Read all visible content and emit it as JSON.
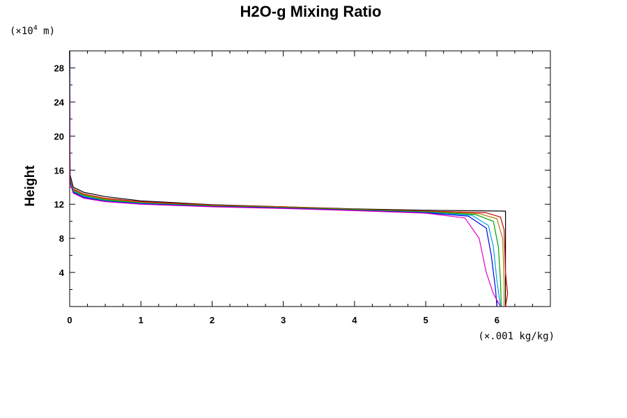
{
  "chart_data": {
    "type": "line",
    "title": "H2O-g Mixing Ratio",
    "xlabel": "",
    "ylabel": "Height",
    "x_unit": "(×.001 kg/kg)",
    "y_unit_prefix": "(×10",
    "y_unit_exp": "4",
    "y_unit_suffix": " m)",
    "xlim": [
      0,
      6.75
    ],
    "ylim": [
      0,
      30
    ],
    "x_ticks": [
      0,
      1,
      2,
      3,
      4,
      5,
      6
    ],
    "x_tick_labels": [
      "0",
      "1",
      "2",
      "3",
      "4",
      "5",
      "6"
    ],
    "y_ticks": [
      4,
      8,
      12,
      16,
      20,
      24,
      28
    ],
    "y_tick_labels": [
      "4",
      "8",
      "12",
      "16",
      "20",
      "24",
      "28"
    ],
    "grid": false,
    "series": [
      {
        "color": "#000000",
        "points": [
          [
            0,
            30
          ],
          [
            0.005,
            15.5
          ],
          [
            0.05,
            14
          ],
          [
            0.2,
            13.4
          ],
          [
            0.5,
            12.9
          ],
          [
            1,
            12.4
          ],
          [
            2,
            11.95
          ],
          [
            3,
            11.7
          ],
          [
            4,
            11.45
          ],
          [
            5,
            11.3
          ],
          [
            6.1,
            11.2
          ],
          [
            6.12,
            11.2
          ],
          [
            6.12,
            0
          ]
        ]
      },
      {
        "color": "#d00000",
        "points": [
          [
            0,
            30
          ],
          [
            0.005,
            15
          ],
          [
            0.05,
            13.8
          ],
          [
            0.2,
            13.2
          ],
          [
            0.5,
            12.7
          ],
          [
            1,
            12.3
          ],
          [
            2,
            11.9
          ],
          [
            3,
            11.7
          ],
          [
            4,
            11.4
          ],
          [
            5,
            11.2
          ],
          [
            5.85,
            11
          ],
          [
            6.05,
            10.5
          ],
          [
            6.1,
            9
          ],
          [
            6.12,
            4
          ],
          [
            6.15,
            1.5
          ],
          [
            6.12,
            0
          ]
        ]
      },
      {
        "color": "#a08000",
        "points": [
          [
            0,
            30
          ],
          [
            0.005,
            15
          ],
          [
            0.05,
            13.7
          ],
          [
            0.2,
            13.1
          ],
          [
            0.5,
            12.6
          ],
          [
            1,
            12.2
          ],
          [
            2,
            11.85
          ],
          [
            3,
            11.65
          ],
          [
            4,
            11.4
          ],
          [
            5,
            11.15
          ],
          [
            5.75,
            10.9
          ],
          [
            6.0,
            10.3
          ],
          [
            6.08,
            8
          ],
          [
            6.1,
            3
          ],
          [
            6.1,
            0
          ]
        ]
      },
      {
        "color": "#00a000",
        "points": [
          [
            0,
            30
          ],
          [
            0.005,
            14.8
          ],
          [
            0.05,
            13.6
          ],
          [
            0.2,
            13
          ],
          [
            0.5,
            12.5
          ],
          [
            1,
            12.15
          ],
          [
            2,
            11.8
          ],
          [
            3,
            11.6
          ],
          [
            4,
            11.35
          ],
          [
            5,
            11.1
          ],
          [
            5.7,
            10.8
          ],
          [
            5.95,
            10
          ],
          [
            6.02,
            7
          ],
          [
            6.05,
            3
          ],
          [
            6.06,
            0
          ]
        ]
      },
      {
        "color": "#00a0e0",
        "points": [
          [
            0,
            30
          ],
          [
            0.005,
            14.7
          ],
          [
            0.05,
            13.5
          ],
          [
            0.2,
            12.9
          ],
          [
            0.5,
            12.4
          ],
          [
            1,
            12.1
          ],
          [
            2,
            11.75
          ],
          [
            3,
            11.55
          ],
          [
            4,
            11.3
          ],
          [
            5,
            11.05
          ],
          [
            5.65,
            10.7
          ],
          [
            5.88,
            9.5
          ],
          [
            5.95,
            7
          ],
          [
            6.0,
            3
          ],
          [
            6.05,
            0
          ]
        ]
      },
      {
        "color": "#0000e0",
        "points": [
          [
            0,
            30
          ],
          [
            0.005,
            14.6
          ],
          [
            0.05,
            13.4
          ],
          [
            0.2,
            12.8
          ],
          [
            0.5,
            12.35
          ],
          [
            1,
            12.05
          ],
          [
            2,
            11.75
          ],
          [
            3,
            11.55
          ],
          [
            4,
            11.3
          ],
          [
            5,
            11
          ],
          [
            5.6,
            10.6
          ],
          [
            5.85,
            9.2
          ],
          [
            5.92,
            6
          ],
          [
            5.98,
            2
          ],
          [
            6.0,
            0
          ]
        ]
      },
      {
        "color": "#e000c0",
        "points": [
          [
            0,
            30
          ],
          [
            0.005,
            14.5
          ],
          [
            0.05,
            13.3
          ],
          [
            0.2,
            12.7
          ],
          [
            0.5,
            12.3
          ],
          [
            1,
            12
          ],
          [
            2,
            11.7
          ],
          [
            3,
            11.5
          ],
          [
            4,
            11.25
          ],
          [
            5,
            10.95
          ],
          [
            5.55,
            10.4
          ],
          [
            5.75,
            8
          ],
          [
            5.85,
            4
          ],
          [
            5.95,
            1.5
          ],
          [
            6.05,
            0
          ]
        ]
      }
    ]
  }
}
